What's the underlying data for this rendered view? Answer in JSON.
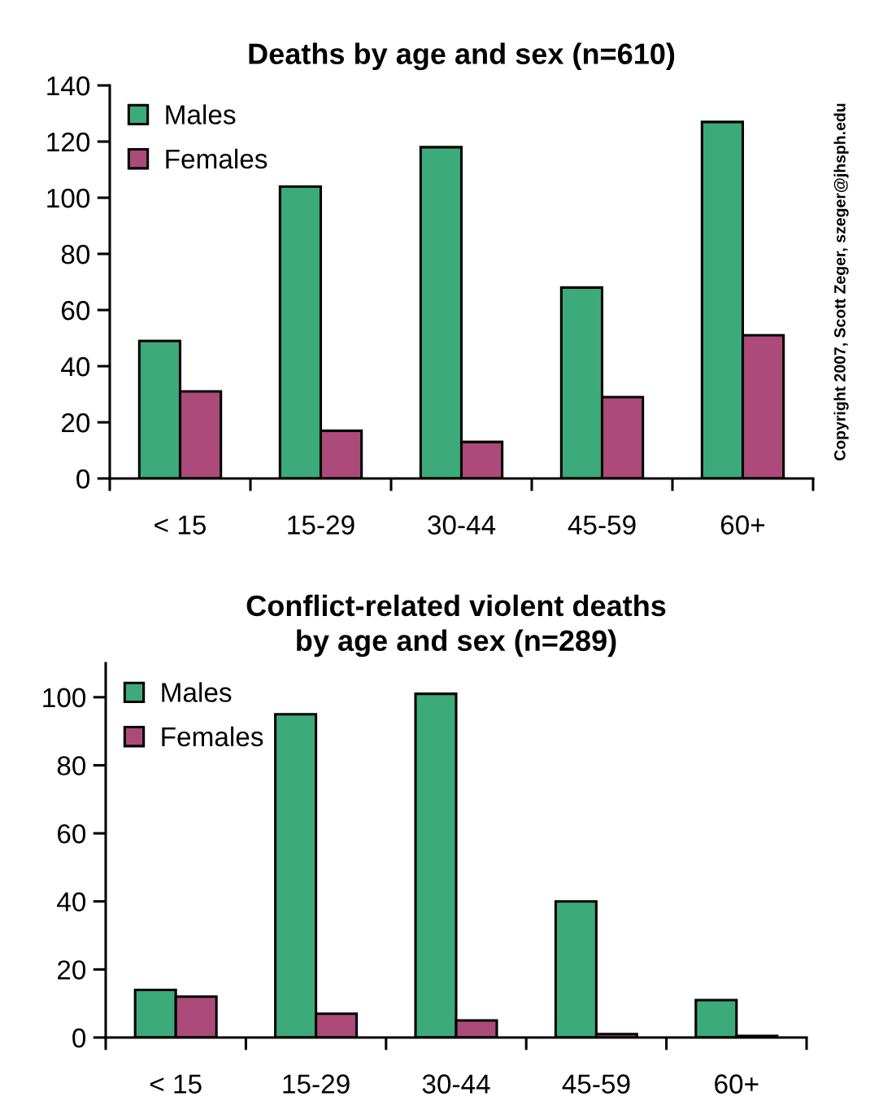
{
  "chart_data": [
    {
      "type": "bar",
      "title": "Deaths by age and sex (n=610)",
      "categories": [
        "< 15",
        "15-29",
        "30-44",
        "45-59",
        "60+"
      ],
      "series": [
        {
          "name": "Males",
          "color": "#3caa7b",
          "values": [
            49,
            104,
            118,
            68,
            127
          ]
        },
        {
          "name": "Females",
          "color": "#ac4a7a",
          "values": [
            31,
            17,
            13,
            29,
            51
          ]
        }
      ],
      "ylim": [
        0,
        140
      ],
      "yticks": [
        0,
        20,
        40,
        60,
        80,
        100,
        120,
        140
      ],
      "legend": "top left",
      "annotations": [
        "Copyright 2007, Scott Zeger, szeger@jhsph.edu"
      ]
    },
    {
      "type": "bar",
      "title": "Conflict-related violent deaths\nby age and sex (n=289)",
      "categories": [
        "< 15",
        "15-29",
        "30-44",
        "45-59",
        "60+"
      ],
      "series": [
        {
          "name": "Males",
          "color": "#3caa7b",
          "values": [
            14,
            95,
            101,
            40,
            11
          ]
        },
        {
          "name": "Females",
          "color": "#ac4a7a",
          "values": [
            12,
            7,
            5,
            1,
            0.5
          ]
        }
      ],
      "ylim": [
        0,
        110
      ],
      "yticks": [
        0,
        20,
        40,
        60,
        80,
        100
      ],
      "legend": "top left"
    }
  ]
}
